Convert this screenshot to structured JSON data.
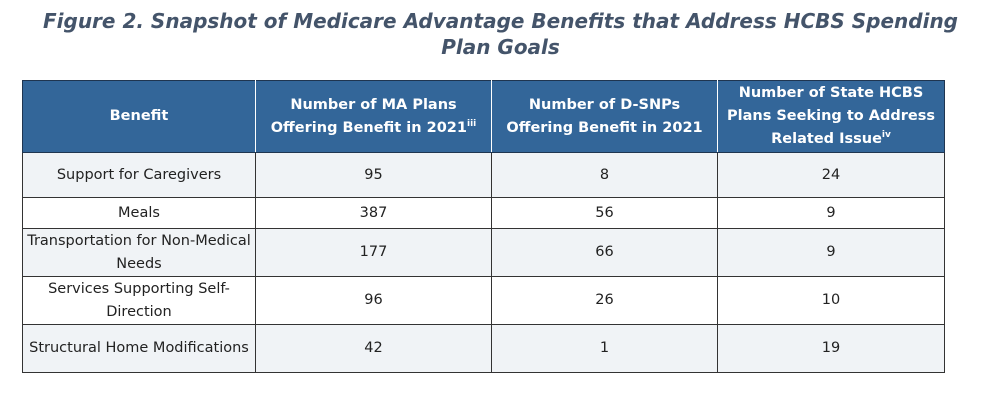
{
  "figure": {
    "title_line1": "Figure 2. Snapshot of Medicare Advantage Benefits that Address HCBS Spending",
    "title_line2": "Plan Goals"
  },
  "table": {
    "headers": {
      "benefit": "Benefit",
      "ma_plans": "Number of MA Plans Offering Benefit in 2021",
      "ma_plans_sup": "iii",
      "dsnps": "Number of D-SNPs Offering Benefit in 2021",
      "state_plans": "Number of State HCBS Plans Seeking to Address Related Issue",
      "state_plans_sup": "iv"
    },
    "rows": [
      {
        "benefit": "Support for Caregivers",
        "ma_plans": "95",
        "dsnps": "8",
        "state_plans": "24"
      },
      {
        "benefit": "Meals",
        "ma_plans": "387",
        "dsnps": "56",
        "state_plans": "9"
      },
      {
        "benefit": "Transportation for Non-Medical Needs",
        "ma_plans": "177",
        "dsnps": "66",
        "state_plans": "9"
      },
      {
        "benefit": "Services Supporting Self-Direction",
        "ma_plans": "96",
        "dsnps": "26",
        "state_plans": "10"
      },
      {
        "benefit": "Structural Home Modifications",
        "ma_plans": "42",
        "dsnps": "1",
        "state_plans": "19"
      }
    ]
  },
  "colors": {
    "title": "#44546a",
    "header_background": "#336699",
    "header_text": "#ffffff",
    "alternate_row": "#f0f3f6"
  }
}
